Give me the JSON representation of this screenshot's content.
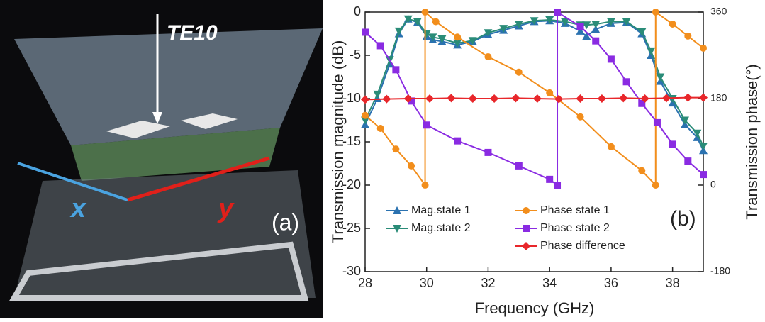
{
  "panel_a": {
    "arrow_label": "TE10",
    "x_label": "x",
    "y_label": "y",
    "panel_label": "(a)"
  },
  "chart_data": {
    "type": "line",
    "panel_label": "(b)",
    "x_label": "Frequency (GHz)",
    "y_label": "Transmission magnitude (dB)",
    "y2_label": "Transmission phase(°)",
    "xlim": [
      28,
      39
    ],
    "xticks": [
      28,
      30,
      32,
      34,
      36,
      38
    ],
    "ylim": [
      -30,
      0
    ],
    "yticks": [
      -30,
      -25,
      -20,
      -15,
      -10,
      -5,
      0
    ],
    "y2lim": [
      -180,
      360
    ],
    "y2ticks": [
      -180,
      0,
      180,
      360
    ],
    "series": [
      {
        "name": "Mag.state 1",
        "color": "#2b72b0",
        "marker": "triangle-up",
        "x": [
          28,
          28.4,
          28.8,
          29.1,
          29.4,
          29.7,
          30,
          30.2,
          30.5,
          31,
          31.5,
          32,
          32.5,
          33,
          33.5,
          34,
          34.5,
          35,
          35.2,
          35.5,
          36,
          36.5,
          37,
          37.3,
          37.6,
          38,
          38.4,
          38.8,
          39
        ],
        "values": [
          -13,
          -10,
          -6,
          -2.5,
          -0.8,
          -1.2,
          -2.8,
          -3.2,
          -3.4,
          -3.8,
          -3.4,
          -2.6,
          -2.1,
          -1.6,
          -1.1,
          -1,
          -1.3,
          -2.2,
          -2.8,
          -2,
          -1.3,
          -1.2,
          -2.5,
          -5,
          -8,
          -10.5,
          -13,
          -14.5,
          -16
        ]
      },
      {
        "name": "Mag.state 2",
        "color": "#2a8c78",
        "marker": "triangle-down",
        "x": [
          28,
          28.4,
          28.8,
          29.1,
          29.4,
          29.7,
          30,
          30.2,
          30.5,
          31,
          31.5,
          32,
          32.5,
          33,
          33.5,
          34,
          34.5,
          35,
          35.2,
          35.5,
          36,
          36.5,
          37,
          37.3,
          37.6,
          38,
          38.4,
          38.8,
          39
        ],
        "values": [
          -12.5,
          -9.5,
          -5.5,
          -2.2,
          -0.8,
          -1.1,
          -2.5,
          -2.9,
          -3.1,
          -3.6,
          -3.3,
          -2.4,
          -1.9,
          -1.4,
          -1,
          -0.9,
          -1.1,
          -1.5,
          -1.5,
          -1.4,
          -1.1,
          -1.1,
          -2.3,
          -4.5,
          -7.5,
          -10,
          -12.5,
          -14,
          -15.5
        ]
      },
      {
        "name": "Phase state 1",
        "color": "#f28e1c",
        "marker": "circle",
        "axis": "y2",
        "x": [
          28,
          28.5,
          29,
          29.5,
          29.95,
          29.95,
          30.3,
          31,
          32,
          33,
          34,
          35,
          36,
          37,
          37.45,
          37.45,
          38,
          38.5,
          39
        ],
        "values": [
          145,
          118,
          75,
          40,
          0,
          360,
          340,
          308,
          267,
          235,
          192,
          142,
          80,
          30,
          0,
          360,
          335,
          310,
          285
        ]
      },
      {
        "name": "Phase state 2",
        "color": "#8a2be2",
        "marker": "square",
        "axis": "y2",
        "x": [
          28,
          28.5,
          29,
          29.5,
          30,
          31,
          32,
          33,
          34,
          34.25,
          34.25,
          35,
          35.5,
          36,
          36.5,
          37,
          37.5,
          38,
          38.5,
          39
        ],
        "values": [
          318,
          290,
          240,
          175,
          125,
          92,
          68,
          40,
          12,
          0,
          360,
          330,
          300,
          262,
          215,
          170,
          130,
          85,
          50,
          22
        ]
      },
      {
        "name": "Phase difference",
        "color": "#e8272b",
        "marker": "diamond",
        "axis": "y2",
        "x": [
          28,
          28.7,
          29.4,
          30.1,
          30.8,
          31.5,
          32.2,
          32.9,
          33.6,
          34.3,
          35,
          35.7,
          36.4,
          37.1,
          37.8,
          38.5,
          39
        ],
        "values": [
          178,
          179,
          180,
          180,
          181,
          180,
          180,
          181,
          180,
          179,
          180,
          180,
          181,
          180,
          181,
          182,
          182
        ]
      }
    ]
  }
}
